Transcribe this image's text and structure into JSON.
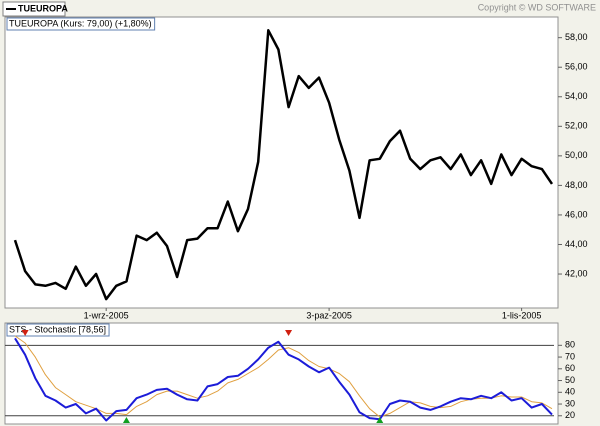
{
  "copyright": "Copyright © WD SOFTWARE",
  "chart_data": [
    {
      "type": "line",
      "title": "TUEUROPA (Kurs: 79,00) (+1,80%)",
      "categories": [
        null,
        null,
        null,
        null,
        null,
        null,
        null,
        null,
        null,
        "1-wrz-2005",
        null,
        null,
        null,
        null,
        null,
        null,
        null,
        null,
        null,
        null,
        null,
        null,
        null,
        null,
        null,
        null,
        null,
        null,
        null,
        null,
        null,
        "3-paz-2005",
        null,
        null,
        null,
        null,
        null,
        null,
        null,
        null,
        null,
        null,
        null,
        null,
        null,
        null,
        null,
        null,
        null,
        null,
        "1-lis-2005",
        null,
        null,
        null
      ],
      "series": [
        {
          "name": "TUEUROPA",
          "color": "#000000",
          "values": [
            44.3,
            42.2,
            41.3,
            41.2,
            41.4,
            41.0,
            42.5,
            41.2,
            42.0,
            40.3,
            41.2,
            41.5,
            44.6,
            44.3,
            44.8,
            43.9,
            41.8,
            44.3,
            44.4,
            45.1,
            45.1,
            46.9,
            44.9,
            46.4,
            49.6,
            58.5,
            57.2,
            53.3,
            55.4,
            54.6,
            55.3,
            53.6,
            51.1,
            49.0,
            45.8,
            49.7,
            49.8,
            51.0,
            51.7,
            49.8,
            49.1,
            49.7,
            49.9,
            49.1,
            50.1,
            48.7,
            49.7,
            48.1,
            50.1,
            48.7,
            49.8,
            49.3,
            49.1,
            48.1
          ]
        }
      ],
      "ylim": [
        39.7,
        59.4
      ],
      "yticks": [
        {
          "value": 42,
          "label": "42,00"
        },
        {
          "value": 44,
          "label": "44,00"
        },
        {
          "value": 46,
          "label": "46,00"
        },
        {
          "value": 48,
          "label": "48,00"
        },
        {
          "value": 50,
          "label": "50,00"
        },
        {
          "value": 52,
          "label": "52,00"
        },
        {
          "value": 54,
          "label": "54,00"
        },
        {
          "value": 56,
          "label": "56,00"
        },
        {
          "value": 58,
          "label": "58,00"
        }
      ],
      "legend": "top-left"
    },
    {
      "type": "line",
      "title": "STS - Stochastic [78,56]",
      "series": [
        {
          "color": "#1c1cd8",
          "values": [
            86,
            72,
            52,
            37,
            33,
            27,
            30,
            22,
            26,
            16,
            24,
            25,
            35,
            38,
            42,
            43,
            38,
            34,
            33,
            45,
            47,
            53,
            54,
            60,
            68,
            78,
            83,
            72,
            68,
            62,
            57,
            61,
            49,
            38,
            23,
            18,
            17,
            30,
            33,
            32,
            27,
            25,
            28,
            32,
            35,
            34,
            37,
            35,
            40,
            33,
            35,
            27,
            30,
            21
          ]
        },
        {
          "color": "#e0a040",
          "values": [
            88,
            82,
            70,
            55,
            44,
            38,
            32,
            29,
            26,
            22,
            22,
            21,
            28,
            32,
            38,
            41,
            41,
            38,
            35,
            37,
            41,
            48,
            51,
            56,
            61,
            68,
            76,
            78,
            74,
            67,
            62,
            60,
            56,
            49,
            37,
            26,
            19,
            22,
            27,
            32,
            31,
            28,
            27,
            28,
            32,
            34,
            35,
            35,
            37,
            36,
            36,
            32,
            31,
            26
          ]
        }
      ],
      "ylim": [
        13,
        99
      ],
      "yticks": [
        20,
        30,
        40,
        50,
        60,
        70,
        80
      ],
      "reference_lines": [
        20,
        80
      ],
      "sell_signals": [
        1,
        27
      ],
      "sell_color": "#d02010",
      "buy_signals": [
        11,
        36
      ],
      "buy_color": "#10a020"
    }
  ]
}
